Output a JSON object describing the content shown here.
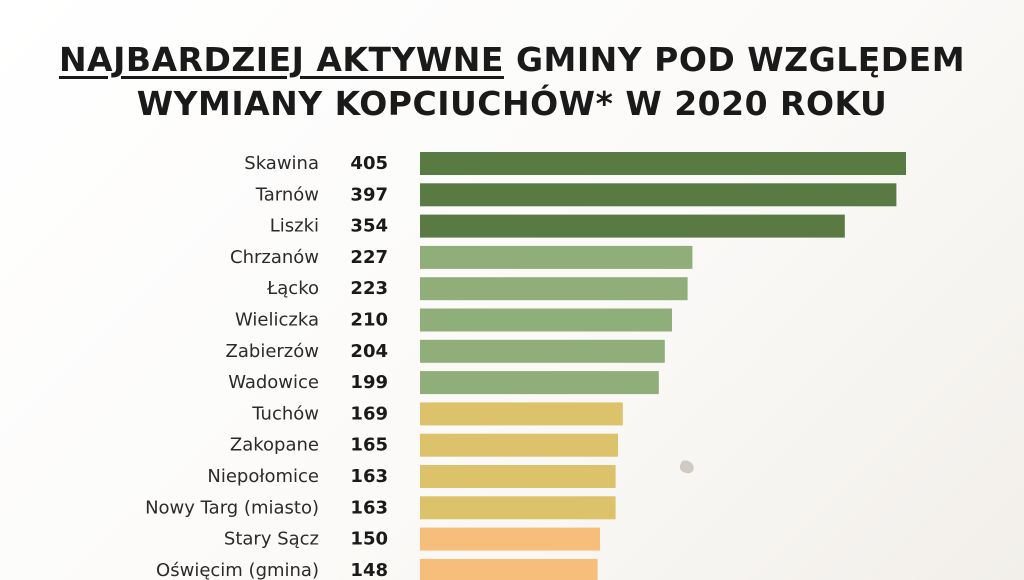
{
  "chart_data": {
    "type": "bar",
    "orientation": "horizontal",
    "title_line1_underlined": "NAJBARDZIEJ AKTYWNE",
    "title_line1_rest": " GMINY POD WZGLĘDEM",
    "title_line2": "WYMIANY KOPCIUCHÓW* W 2020 ROKU",
    "categories": [
      "Skawina",
      "Tarnów",
      "Liszki",
      "Chrzanów",
      "Łącko",
      "Wieliczka",
      "Zabierzów",
      "Wadowice",
      "Tuchów",
      "Zakopane",
      "Niepołomice",
      "Nowy Targ (miasto)",
      "Stary Sącz",
      "Oświęcim (gmina)"
    ],
    "values": [
      405,
      397,
      354,
      227,
      223,
      210,
      204,
      199,
      169,
      165,
      163,
      163,
      150,
      148
    ],
    "colors": [
      "#5a7a44",
      "#5a7a44",
      "#5a7a44",
      "#8fae7a",
      "#8fae7a",
      "#8fae7a",
      "#8fae7a",
      "#8fae7a",
      "#dcc36b",
      "#dcc36b",
      "#dcc36b",
      "#dcc36b",
      "#f7bd7b",
      "#f7bd7b"
    ],
    "xlim": [
      0,
      405
    ],
    "grid": false,
    "legend": "none"
  }
}
